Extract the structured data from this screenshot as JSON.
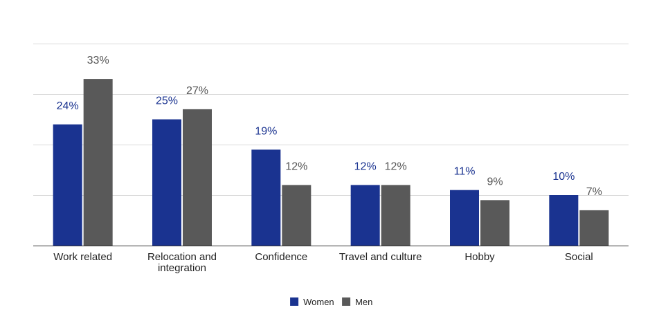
{
  "chart_data": {
    "type": "bar",
    "categories": [
      "Work related",
      "Relocation and integration",
      "Confidence",
      "Travel and culture",
      "Hobby",
      "Social"
    ],
    "category_lines": [
      [
        "Work related"
      ],
      [
        "Relocation and",
        "integration"
      ],
      [
        "Confidence"
      ],
      [
        "Travel and culture"
      ],
      [
        "Hobby"
      ],
      [
        "Social"
      ]
    ],
    "series": [
      {
        "name": "Women",
        "values": [
          24,
          25,
          19,
          12,
          11,
          10
        ],
        "labels": [
          "24%",
          "25%",
          "19%",
          "12%",
          "11%",
          "10%"
        ],
        "color": "#1a3390",
        "label_color": "#1a3390"
      },
      {
        "name": "Men",
        "values": [
          33,
          27,
          12,
          12,
          9,
          7
        ],
        "labels": [
          "33%",
          "27%",
          "12%",
          "12%",
          "9%",
          "7%"
        ],
        "color": "#595959",
        "label_color": "#555555"
      }
    ],
    "ylim": [
      0,
      40
    ],
    "grid": true,
    "legend": "bottom-center"
  }
}
